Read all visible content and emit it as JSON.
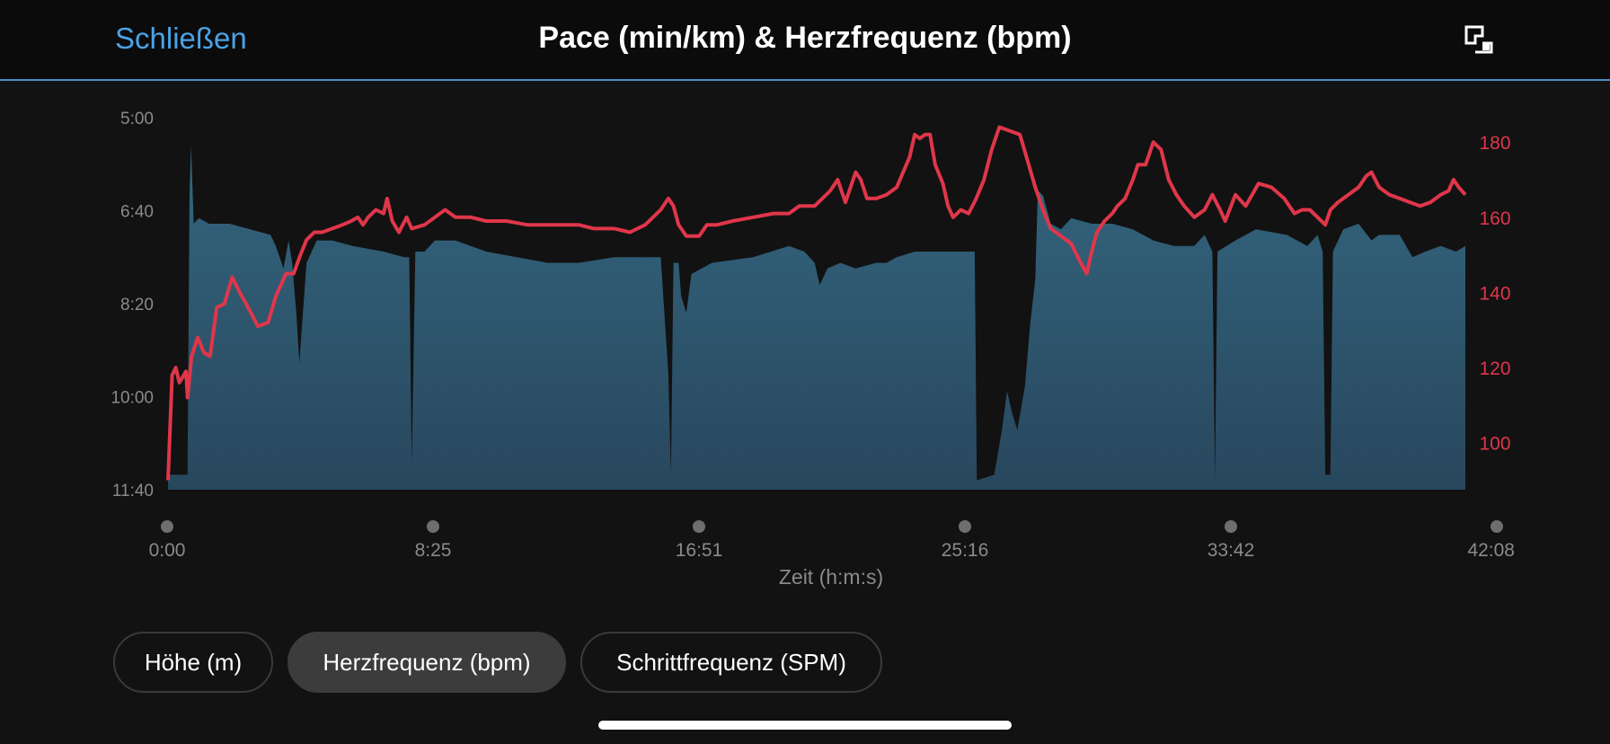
{
  "header": {
    "close_label": "Schließen",
    "title": "Pace (min/km) & Herzfrequenz (bpm)",
    "expand_icon": "expand-icon"
  },
  "chart_data": {
    "type": "area+line",
    "xlabel": "Zeit (h:m:s)",
    "x_ticks": [
      "0:00",
      "8:25",
      "16:51",
      "25:16",
      "33:42",
      "42:08"
    ],
    "x_range_seconds": [
      0,
      2528
    ],
    "left_axis": {
      "ticks": [
        "5:00",
        "6:40",
        "8:20",
        "10:00",
        "11:40"
      ],
      "range_min_per_km": [
        5.0,
        11.667
      ],
      "color": "#2f6580"
    },
    "right_axis": {
      "ticks": [
        "180",
        "160",
        "140",
        "120",
        "100"
      ],
      "range_bpm": [
        87.5,
        186.5
      ],
      "color": "#e0364a"
    },
    "series": [
      {
        "name": "Pace (min/km)",
        "style": "area",
        "color": "#2f6580",
        "points": [
          [
            0,
            11.4
          ],
          [
            20,
            11.4
          ],
          [
            38,
            11.4
          ],
          [
            42,
            6.3
          ],
          [
            45,
            5.5
          ],
          [
            50,
            6.9
          ],
          [
            60,
            6.8
          ],
          [
            80,
            6.9
          ],
          [
            120,
            6.9
          ],
          [
            160,
            7.0
          ],
          [
            200,
            7.1
          ],
          [
            210,
            7.3
          ],
          [
            225,
            7.7
          ],
          [
            235,
            7.2
          ],
          [
            242,
            7.6
          ],
          [
            250,
            8.5
          ],
          [
            256,
            9.4
          ],
          [
            262,
            8.6
          ],
          [
            270,
            7.6
          ],
          [
            280,
            7.4
          ],
          [
            290,
            7.2
          ],
          [
            320,
            7.2
          ],
          [
            360,
            7.3
          ],
          [
            420,
            7.4
          ],
          [
            460,
            7.5
          ],
          [
            470,
            7.5
          ],
          [
            475,
            11.2
          ],
          [
            482,
            7.4
          ],
          [
            500,
            7.4
          ],
          [
            520,
            7.2
          ],
          [
            560,
            7.2
          ],
          [
            620,
            7.4
          ],
          [
            680,
            7.5
          ],
          [
            740,
            7.6
          ],
          [
            800,
            7.6
          ],
          [
            870,
            7.5
          ],
          [
            960,
            7.5
          ],
          [
            970,
            8.9
          ],
          [
            975,
            9.6
          ],
          [
            980,
            11.4
          ],
          [
            985,
            7.6
          ],
          [
            995,
            7.6
          ],
          [
            1000,
            8.2
          ],
          [
            1010,
            8.5
          ],
          [
            1020,
            7.8
          ],
          [
            1060,
            7.6
          ],
          [
            1140,
            7.5
          ],
          [
            1210,
            7.3
          ],
          [
            1240,
            7.4
          ],
          [
            1260,
            7.6
          ],
          [
            1270,
            8.0
          ],
          [
            1285,
            7.7
          ],
          [
            1310,
            7.6
          ],
          [
            1340,
            7.7
          ],
          [
            1380,
            7.6
          ],
          [
            1400,
            7.6
          ],
          [
            1420,
            7.5
          ],
          [
            1455,
            7.4
          ],
          [
            1572,
            7.4
          ],
          [
            1576,
            11.5
          ],
          [
            1610,
            11.4
          ],
          [
            1625,
            10.6
          ],
          [
            1635,
            9.9
          ],
          [
            1645,
            10.3
          ],
          [
            1655,
            10.6
          ],
          [
            1670,
            9.8
          ],
          [
            1680,
            8.7
          ],
          [
            1690,
            7.9
          ],
          [
            1695,
            6.3
          ],
          [
            1705,
            6.4
          ],
          [
            1720,
            6.9
          ],
          [
            1740,
            7.0
          ],
          [
            1760,
            6.8
          ],
          [
            1800,
            6.9
          ],
          [
            1840,
            6.9
          ],
          [
            1880,
            7.0
          ],
          [
            1920,
            7.2
          ],
          [
            1960,
            7.3
          ],
          [
            2000,
            7.3
          ],
          [
            2020,
            7.1
          ],
          [
            2035,
            7.4
          ],
          [
            2040,
            11.5
          ],
          [
            2045,
            7.4
          ],
          [
            2080,
            7.2
          ],
          [
            2120,
            7.0
          ],
          [
            2180,
            7.1
          ],
          [
            2220,
            7.3
          ],
          [
            2240,
            7.1
          ],
          [
            2250,
            7.4
          ],
          [
            2255,
            11.4
          ],
          [
            2265,
            11.4
          ],
          [
            2270,
            7.4
          ],
          [
            2290,
            7.0
          ],
          [
            2320,
            6.9
          ],
          [
            2345,
            7.2
          ],
          [
            2360,
            7.1
          ],
          [
            2400,
            7.1
          ],
          [
            2425,
            7.5
          ],
          [
            2450,
            7.4
          ],
          [
            2480,
            7.3
          ],
          [
            2510,
            7.4
          ],
          [
            2528,
            7.3
          ]
        ]
      },
      {
        "name": "Herzfrequenz (bpm)",
        "style": "line",
        "color": "#e0364a",
        "points": [
          [
            0,
            90
          ],
          [
            8,
            118
          ],
          [
            15,
            120
          ],
          [
            22,
            116
          ],
          [
            35,
            119
          ],
          [
            38,
            112
          ],
          [
            46,
            123
          ],
          [
            58,
            128
          ],
          [
            70,
            124
          ],
          [
            82,
            123
          ],
          [
            95,
            136
          ],
          [
            110,
            137
          ],
          [
            125,
            144
          ],
          [
            140,
            140
          ],
          [
            160,
            135
          ],
          [
            175,
            131
          ],
          [
            195,
            132
          ],
          [
            210,
            139
          ],
          [
            230,
            145
          ],
          [
            245,
            145
          ],
          [
            258,
            150
          ],
          [
            270,
            154
          ],
          [
            285,
            156
          ],
          [
            300,
            156
          ],
          [
            320,
            157
          ],
          [
            340,
            158
          ],
          [
            357,
            159
          ],
          [
            370,
            160
          ],
          [
            380,
            158
          ],
          [
            390,
            160
          ],
          [
            405,
            162
          ],
          [
            420,
            161
          ],
          [
            427,
            165
          ],
          [
            437,
            159
          ],
          [
            450,
            156
          ],
          [
            465,
            160
          ],
          [
            475,
            157
          ],
          [
            500,
            158
          ],
          [
            520,
            160
          ],
          [
            540,
            162
          ],
          [
            560,
            160
          ],
          [
            590,
            160
          ],
          [
            620,
            159
          ],
          [
            660,
            159
          ],
          [
            700,
            158
          ],
          [
            730,
            158
          ],
          [
            760,
            158
          ],
          [
            800,
            158
          ],
          [
            830,
            157
          ],
          [
            870,
            157
          ],
          [
            900,
            156
          ],
          [
            930,
            158
          ],
          [
            960,
            162
          ],
          [
            975,
            165
          ],
          [
            985,
            163
          ],
          [
            995,
            158
          ],
          [
            1010,
            155
          ],
          [
            1035,
            155
          ],
          [
            1050,
            158
          ],
          [
            1070,
            158
          ],
          [
            1100,
            159
          ],
          [
            1140,
            160
          ],
          [
            1180,
            161
          ],
          [
            1210,
            161
          ],
          [
            1230,
            163
          ],
          [
            1260,
            163
          ],
          [
            1290,
            167
          ],
          [
            1305,
            170
          ],
          [
            1320,
            164
          ],
          [
            1340,
            172
          ],
          [
            1350,
            170
          ],
          [
            1362,
            165
          ],
          [
            1380,
            165
          ],
          [
            1400,
            166
          ],
          [
            1420,
            168
          ],
          [
            1445,
            176
          ],
          [
            1455,
            182
          ],
          [
            1465,
            181
          ],
          [
            1475,
            182
          ],
          [
            1485,
            182
          ],
          [
            1495,
            174
          ],
          [
            1510,
            169
          ],
          [
            1520,
            163
          ],
          [
            1530,
            160
          ],
          [
            1545,
            162
          ],
          [
            1560,
            161
          ],
          [
            1575,
            165
          ],
          [
            1590,
            170
          ],
          [
            1605,
            178
          ],
          [
            1620,
            184
          ],
          [
            1640,
            183
          ],
          [
            1660,
            182
          ],
          [
            1675,
            175
          ],
          [
            1690,
            168
          ],
          [
            1705,
            162
          ],
          [
            1720,
            157
          ],
          [
            1740,
            155
          ],
          [
            1760,
            153
          ],
          [
            1778,
            148
          ],
          [
            1790,
            145
          ],
          [
            1800,
            151
          ],
          [
            1810,
            156
          ],
          [
            1825,
            159
          ],
          [
            1840,
            161
          ],
          [
            1850,
            163
          ],
          [
            1865,
            165
          ],
          [
            1880,
            170
          ],
          [
            1890,
            174
          ],
          [
            1905,
            174
          ],
          [
            1920,
            180
          ],
          [
            1935,
            178
          ],
          [
            1950,
            170
          ],
          [
            1965,
            166
          ],
          [
            1980,
            163
          ],
          [
            2000,
            160
          ],
          [
            2020,
            162
          ],
          [
            2035,
            166
          ],
          [
            2050,
            162
          ],
          [
            2060,
            159
          ],
          [
            2080,
            166
          ],
          [
            2100,
            163
          ],
          [
            2125,
            169
          ],
          [
            2150,
            168
          ],
          [
            2175,
            165
          ],
          [
            2195,
            161
          ],
          [
            2210,
            162
          ],
          [
            2225,
            162
          ],
          [
            2240,
            160
          ],
          [
            2255,
            158
          ],
          [
            2265,
            162
          ],
          [
            2280,
            164
          ],
          [
            2300,
            166
          ],
          [
            2320,
            168
          ],
          [
            2335,
            171
          ],
          [
            2345,
            172
          ],
          [
            2360,
            168
          ],
          [
            2380,
            166
          ],
          [
            2400,
            165
          ],
          [
            2420,
            164
          ],
          [
            2440,
            163
          ],
          [
            2460,
            164
          ],
          [
            2480,
            166
          ],
          [
            2495,
            167
          ],
          [
            2505,
            170
          ],
          [
            2515,
            168
          ],
          [
            2528,
            166
          ]
        ]
      }
    ]
  },
  "filters": [
    {
      "label": "Höhe (m)",
      "active": false
    },
    {
      "label": "Herzfrequenz (bpm)",
      "active": true
    },
    {
      "label": "Schrittfrequenz (SPM)",
      "active": false
    }
  ],
  "colors": {
    "accent": "#4aa3e6",
    "pace_fill": "#2f6580",
    "heart_rate": "#e0364a",
    "background": "#121212"
  }
}
